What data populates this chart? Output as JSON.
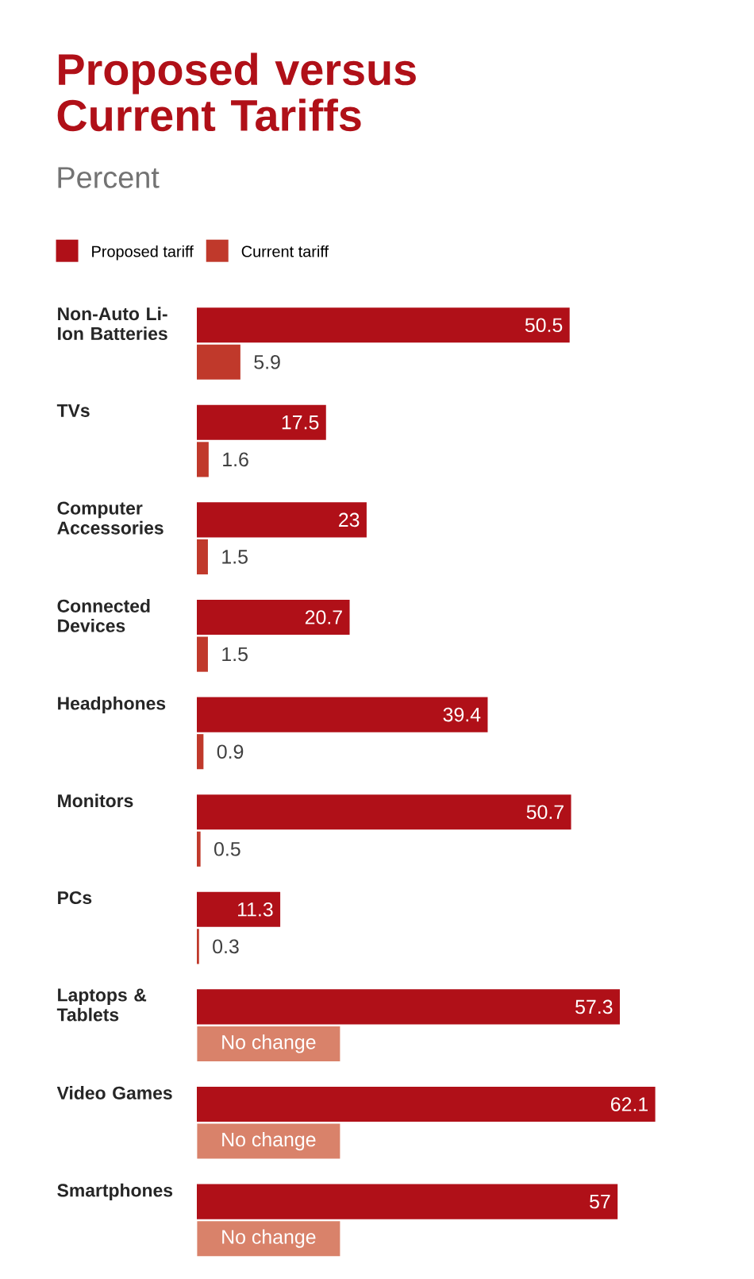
{
  "chart_data": {
    "type": "bar",
    "orientation": "horizontal",
    "title": "Proposed versus Current Tariffs",
    "subtitle": "Percent",
    "categories": [
      "Non-Auto Li-Ion Batteries",
      "TVs",
      "Computer Accessories",
      "Connected Devices",
      "Headphones",
      "Monitors",
      "PCs",
      "Laptops & Tablets",
      "Video Games",
      "Smartphones"
    ],
    "series": [
      {
        "name": "Proposed tariff",
        "color": "#b01018",
        "values": [
          50.5,
          17.5,
          23,
          20.7,
          39.4,
          50.7,
          11.3,
          57.3,
          62.1,
          57
        ],
        "value_labels": [
          "50.5",
          "17.5",
          "23",
          "20.7",
          "39.4",
          "50.7",
          "11.3",
          "57.3",
          "62.1",
          "57"
        ]
      },
      {
        "name": "Current tariff",
        "color": "#c0392b",
        "colors": [
          "#c0392b",
          "#c0392b",
          "#c0392b",
          "#c0392b",
          "#c0392b",
          "#c0392b",
          "#c0392b",
          "#d9826a",
          "#d9826a",
          "#d9826a"
        ],
        "values": [
          5.9,
          1.6,
          1.5,
          1.5,
          0.9,
          0.5,
          0.3,
          null,
          null,
          null
        ],
        "value_labels": [
          "5.9",
          "1.6",
          "1.5",
          "1.5",
          "0.9",
          "0.5",
          "0.3",
          "No change",
          "No change",
          "No change"
        ]
      }
    ],
    "legend": "top left"
  }
}
